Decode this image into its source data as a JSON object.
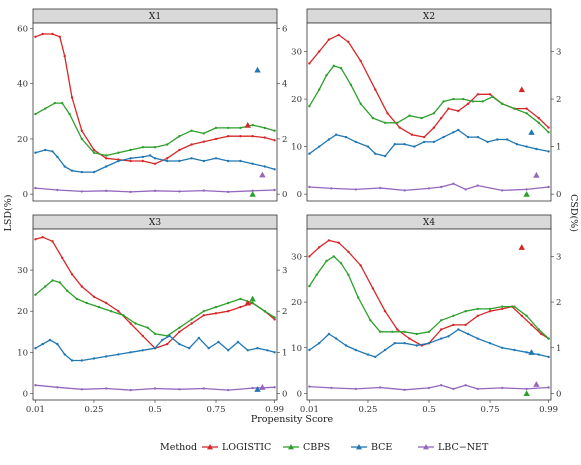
{
  "chart_data": {
    "type": "line",
    "xlabel": "Propensity Score",
    "ylabel_left": "LSD(%)",
    "ylabel_right": "CSD(%)",
    "x_ticks": [
      "0.01",
      "0.25",
      "0.5",
      "0.75",
      "0.99"
    ],
    "x_tick_values": [
      0.01,
      0.25,
      0.5,
      0.75,
      0.99
    ],
    "xlim": [
      0.01,
      0.99
    ],
    "grid": false,
    "legend": {
      "title": "Method",
      "position": "bottom",
      "entries": [
        "LOGISTIC",
        "CBPS",
        "BCE",
        "LBC−NET"
      ]
    },
    "colors": {
      "LOGISTIC": "#d62728",
      "CBPS": "#2ca02c",
      "BCE": "#1f77b4",
      "LBC−NET": "#9467bd"
    },
    "panels": [
      {
        "title": "X1",
        "left_ylim": [
          0,
          62
        ],
        "left_ticks": [
          0,
          20,
          40,
          60
        ],
        "right_ylim": [
          0,
          6.2
        ],
        "right_ticks": [
          0,
          2,
          4,
          6
        ],
        "series": [
          {
            "name": "LOGISTIC",
            "x": [
              0.01,
              0.04,
              0.08,
              0.11,
              0.13,
              0.16,
              0.2,
              0.25,
              0.3,
              0.35,
              0.4,
              0.45,
              0.5,
              0.55,
              0.6,
              0.65,
              0.7,
              0.75,
              0.8,
              0.85,
              0.9,
              0.95,
              0.99
            ],
            "y": [
              57,
              58,
              58,
              57,
              50,
              35,
              23,
              16,
              13,
              12.5,
              12,
              12,
              11,
              13,
              16,
              18,
              19,
              20,
              21,
              21,
              21,
              20.5,
              19.5
            ]
          },
          {
            "name": "CBPS",
            "x": [
              0.01,
              0.05,
              0.09,
              0.12,
              0.15,
              0.2,
              0.25,
              0.3,
              0.35,
              0.4,
              0.45,
              0.5,
              0.55,
              0.6,
              0.65,
              0.7,
              0.75,
              0.8,
              0.85,
              0.9,
              0.95,
              0.99
            ],
            "y": [
              29,
              31,
              33,
              33,
              29,
              20,
              15,
              14,
              15,
              16,
              17,
              17,
              18,
              21,
              23,
              22,
              24,
              24,
              24,
              25,
              24,
              23
            ]
          },
          {
            "name": "BCE",
            "x": [
              0.01,
              0.05,
              0.08,
              0.1,
              0.13,
              0.16,
              0.2,
              0.25,
              0.3,
              0.35,
              0.4,
              0.45,
              0.48,
              0.5,
              0.55,
              0.6,
              0.65,
              0.7,
              0.75,
              0.8,
              0.85,
              0.9,
              0.95,
              0.99
            ],
            "y": [
              15,
              16,
              15.5,
              13.5,
              10,
              8.5,
              8,
              8,
              10,
              12,
              13,
              13.5,
              14,
              13,
              12,
              12,
              13,
              12,
              13,
              12,
              12,
              11,
              10,
              9
            ]
          },
          {
            "name": "LBC−NET",
            "x": [
              0.01,
              0.1,
              0.2,
              0.3,
              0.4,
              0.5,
              0.6,
              0.7,
              0.8,
              0.9,
              0.99
            ],
            "y": [
              2.2,
              1.5,
              1,
              1.2,
              0.8,
              1.2,
              1,
              1.3,
              0.8,
              1.2,
              1.5
            ]
          }
        ],
        "markers": {
          "LOGISTIC": 2.5,
          "CBPS": 0,
          "BCE": 4.5,
          "LBC−NET": 0.7
        }
      },
      {
        "title": "X2",
        "left_ylim": [
          0,
          36
        ],
        "left_ticks": [
          0,
          10,
          20,
          30
        ],
        "right_ylim": [
          0,
          3.6
        ],
        "right_ticks": [
          0,
          1,
          2,
          3
        ],
        "series": [
          {
            "name": "LOGISTIC",
            "x": [
              0.01,
              0.05,
              0.09,
              0.13,
              0.17,
              0.22,
              0.28,
              0.33,
              0.38,
              0.43,
              0.48,
              0.52,
              0.55,
              0.58,
              0.62,
              0.66,
              0.7,
              0.75,
              0.8,
              0.85,
              0.9,
              0.95,
              0.99
            ],
            "y": [
              27.5,
              30,
              32.5,
              33.5,
              32,
              28,
              22,
              17,
              14,
              12.5,
              12,
              14,
              16,
              18,
              17.5,
              19,
              21,
              21,
              19,
              18,
              18,
              16,
              14
            ]
          },
          {
            "name": "CBPS",
            "x": [
              0.01,
              0.05,
              0.08,
              0.11,
              0.14,
              0.18,
              0.22,
              0.27,
              0.32,
              0.37,
              0.42,
              0.47,
              0.52,
              0.56,
              0.6,
              0.64,
              0.68,
              0.72,
              0.76,
              0.8,
              0.85,
              0.9,
              0.95,
              0.99
            ],
            "y": [
              18.5,
              22,
              25,
              27,
              26.5,
              23,
              19,
              16,
              15,
              15,
              16.5,
              16,
              17,
              19.5,
              20,
              20,
              19.5,
              19.5,
              20.5,
              19,
              18,
              17,
              15,
              13
            ]
          },
          {
            "name": "BCE",
            "x": [
              0.01,
              0.05,
              0.09,
              0.12,
              0.16,
              0.2,
              0.25,
              0.28,
              0.32,
              0.36,
              0.4,
              0.44,
              0.48,
              0.52,
              0.56,
              0.6,
              0.62,
              0.66,
              0.7,
              0.74,
              0.78,
              0.82,
              0.86,
              0.9,
              0.94,
              0.99
            ],
            "y": [
              8.5,
              10,
              11.5,
              12.5,
              12,
              11,
              10,
              8.5,
              8,
              10.5,
              10.5,
              10,
              11,
              11,
              12,
              13,
              13.5,
              12,
              12,
              11,
              11.5,
              11.5,
              10.5,
              10,
              9.5,
              9
            ]
          },
          {
            "name": "LBC−NET",
            "x": [
              0.01,
              0.1,
              0.2,
              0.3,
              0.4,
              0.5,
              0.55,
              0.6,
              0.65,
              0.7,
              0.8,
              0.9,
              0.99
            ],
            "y": [
              1.5,
              1.2,
              1,
              1.3,
              0.8,
              1.2,
              1.5,
              2.2,
              1,
              1.8,
              0.8,
              1,
              1.5
            ]
          }
        ],
        "markers": {
          "LOGISTIC": 2.2,
          "CBPS": 0,
          "BCE": 1.3,
          "LBC−NET": 0.4
        }
      },
      {
        "title": "X3",
        "left_ylim": [
          0,
          40
        ],
        "left_ticks": [
          0,
          10,
          20,
          30
        ],
        "right_ylim": [
          0,
          4
        ],
        "right_ticks": [
          0,
          1,
          2,
          3
        ],
        "series": [
          {
            "name": "LOGISTIC",
            "x": [
              0.01,
              0.04,
              0.08,
              0.12,
              0.16,
              0.2,
              0.25,
              0.3,
              0.35,
              0.4,
              0.45,
              0.5,
              0.55,
              0.6,
              0.65,
              0.7,
              0.75,
              0.8,
              0.85,
              0.9,
              0.95,
              0.99
            ],
            "y": [
              37.5,
              38,
              37,
              33,
              29,
              26,
              23.5,
              22,
              20,
              17,
              14,
              11,
              12,
              15,
              17,
              19,
              19.5,
              20,
              21,
              22,
              20,
              18
            ]
          },
          {
            "name": "CBPS",
            "x": [
              0.01,
              0.05,
              0.08,
              0.11,
              0.14,
              0.18,
              0.22,
              0.27,
              0.32,
              0.37,
              0.42,
              0.47,
              0.5,
              0.55,
              0.6,
              0.65,
              0.7,
              0.75,
              0.8,
              0.85,
              0.9,
              0.95,
              0.99
            ],
            "y": [
              24,
              26,
              27.5,
              27,
              25,
              23,
              22,
              21,
              20,
              19,
              17,
              16,
              14.5,
              14,
              16,
              18,
              20,
              21,
              22,
              23,
              22,
              20,
              18.5
            ]
          },
          {
            "name": "BCE",
            "x": [
              0.01,
              0.04,
              0.07,
              0.1,
              0.13,
              0.16,
              0.2,
              0.25,
              0.3,
              0.35,
              0.4,
              0.45,
              0.5,
              0.53,
              0.56,
              0.6,
              0.64,
              0.68,
              0.72,
              0.76,
              0.8,
              0.84,
              0.88,
              0.92,
              0.96,
              0.99
            ],
            "y": [
              11,
              12,
              13,
              12,
              9.5,
              8,
              8,
              8.5,
              9,
              9.5,
              10,
              10.5,
              11,
              13,
              14,
              12,
              11,
              13.5,
              11,
              12.5,
              10.5,
              12.5,
              10.5,
              11,
              10.5,
              10
            ]
          },
          {
            "name": "LBC−NET",
            "x": [
              0.01,
              0.1,
              0.2,
              0.3,
              0.4,
              0.5,
              0.6,
              0.7,
              0.8,
              0.9,
              0.99
            ],
            "y": [
              2,
              1.5,
              1,
              1.2,
              0.8,
              1.2,
              1,
              1.2,
              0.8,
              1.3,
              1.5
            ]
          }
        ],
        "markers": {
          "LOGISTIC": 2.2,
          "CBPS": 2.3,
          "BCE": 0.1,
          "LBC−NET": 0.15
        }
      },
      {
        "title": "X4",
        "left_ylim": [
          0,
          36
        ],
        "left_ticks": [
          0,
          10,
          20,
          30
        ],
        "right_ylim": [
          0,
          3.6
        ],
        "right_ticks": [
          0,
          1,
          2,
          3
        ],
        "series": [
          {
            "name": "LOGISTIC",
            "x": [
              0.01,
              0.05,
              0.09,
              0.13,
              0.17,
              0.22,
              0.27,
              0.32,
              0.37,
              0.42,
              0.47,
              0.5,
              0.55,
              0.6,
              0.65,
              0.7,
              0.75,
              0.8,
              0.84,
              0.88,
              0.92,
              0.96,
              0.99
            ],
            "y": [
              30,
              32,
              33.5,
              33,
              31,
              28,
              23,
              18,
              14,
              12,
              10.5,
              11,
              14,
              15,
              15,
              17,
              18,
              18.5,
              19,
              17,
              15,
              13,
              12
            ]
          },
          {
            "name": "CBPS",
            "x": [
              0.01,
              0.04,
              0.08,
              0.11,
              0.14,
              0.17,
              0.21,
              0.26,
              0.3,
              0.35,
              0.4,
              0.45,
              0.5,
              0.55,
              0.6,
              0.65,
              0.7,
              0.75,
              0.8,
              0.85,
              0.9,
              0.95,
              0.99
            ],
            "y": [
              23.5,
              26,
              29,
              30,
              28.5,
              26,
              21,
              16,
              13.5,
              13.5,
              13.5,
              13,
              13.5,
              16,
              17,
              18,
              18.5,
              18.5,
              19,
              19,
              17,
              14,
              12
            ]
          },
          {
            "name": "BCE",
            "x": [
              0.01,
              0.05,
              0.09,
              0.12,
              0.16,
              0.2,
              0.25,
              0.28,
              0.32,
              0.36,
              0.4,
              0.45,
              0.5,
              0.55,
              0.58,
              0.62,
              0.66,
              0.7,
              0.75,
              0.8,
              0.85,
              0.9,
              0.95,
              0.99
            ],
            "y": [
              9.5,
              11,
              13,
              12,
              10.5,
              9.5,
              8.5,
              8,
              9.5,
              11,
              11,
              10.5,
              11,
              12,
              12.5,
              14,
              13,
              12,
              11,
              10,
              9.5,
              9,
              8.5,
              8
            ]
          },
          {
            "name": "LBC−NET",
            "x": [
              0.01,
              0.1,
              0.2,
              0.3,
              0.4,
              0.5,
              0.55,
              0.6,
              0.65,
              0.7,
              0.8,
              0.9,
              0.99
            ],
            "y": [
              1.5,
              1.2,
              1,
              1.3,
              0.8,
              1.2,
              1.8,
              1,
              1.8,
              1,
              1.2,
              1,
              1.3
            ]
          }
        ],
        "markers": {
          "LOGISTIC": 3.2,
          "CBPS": 0,
          "BCE": 0.9,
          "LBC−NET": 0.2
        }
      }
    ]
  }
}
